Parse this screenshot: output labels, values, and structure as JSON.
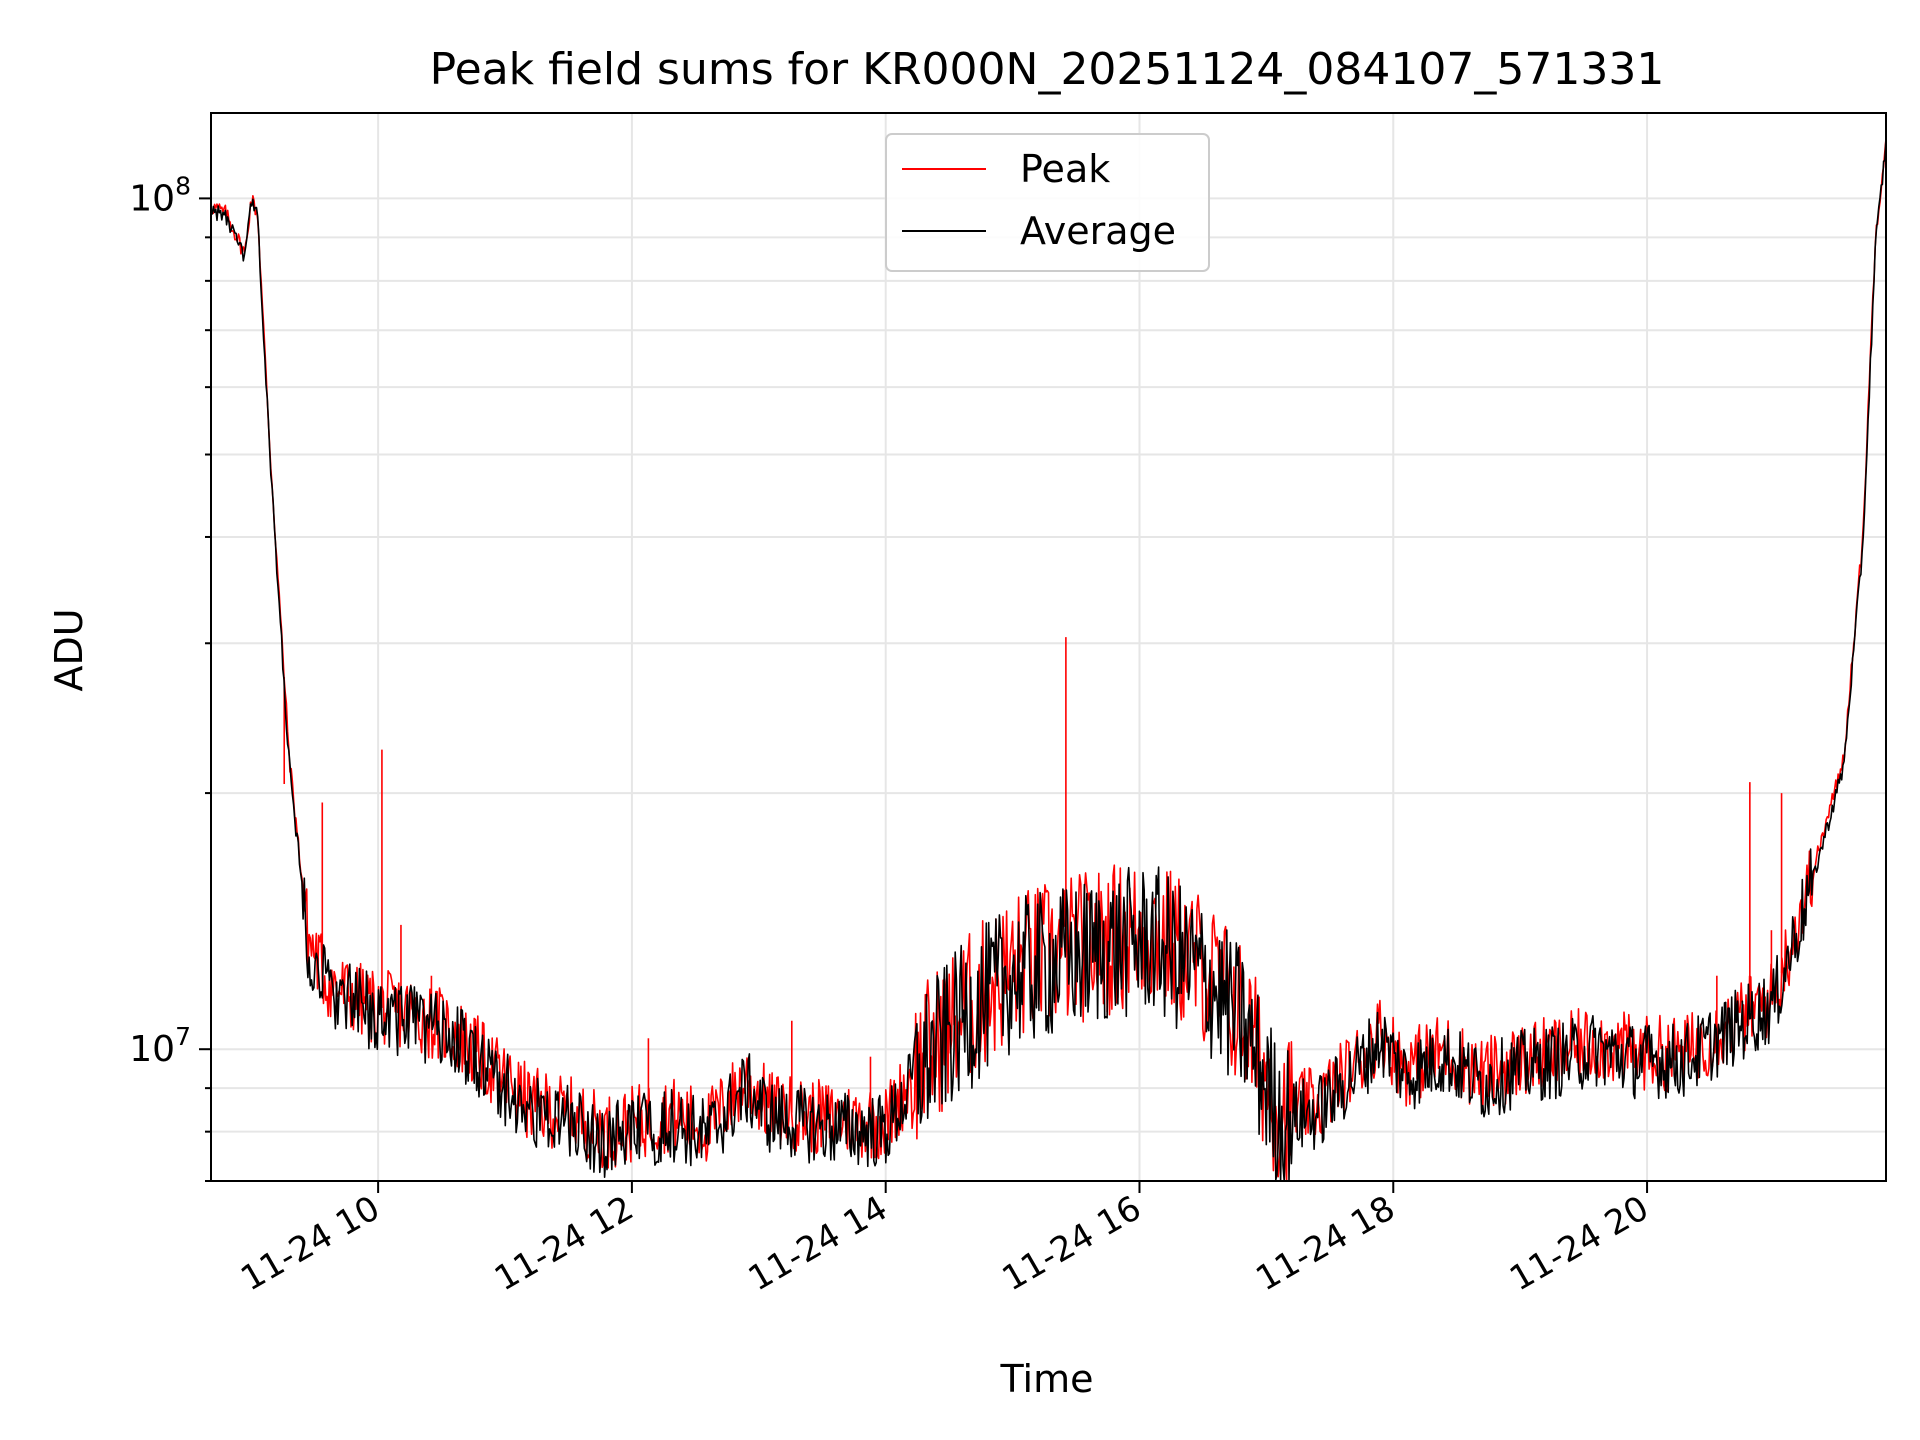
{
  "chart_data": {
    "type": "line",
    "title": "Peak field sums for KR000N_20251124_084107_571331",
    "xlabel": "Time",
    "ylabel": "ADU",
    "y_scale": "log",
    "ylim": [
      7000000,
      126000000
    ],
    "xlim_hours": [
      8.683,
      21.883
    ],
    "grid": true,
    "legend_position": "upper center",
    "x_ticks": [
      {
        "hour": 10,
        "label": "11-24 10"
      },
      {
        "hour": 12,
        "label": "11-24 12"
      },
      {
        "hour": 14,
        "label": "11-24 14"
      },
      {
        "hour": 16,
        "label": "11-24 16"
      },
      {
        "hour": 18,
        "label": "11-24 18"
      },
      {
        "hour": 20,
        "label": "11-24 20"
      }
    ],
    "y_ticks": [
      {
        "value": 10000000,
        "base": "10",
        "exp": "7"
      },
      {
        "value": 100000000,
        "base": "10",
        "exp": "8"
      }
    ],
    "series": [
      {
        "name": "Peak",
        "color": "#ff0000",
        "points": [
          [
            8.683,
            98000000
          ],
          [
            8.8,
            96000000
          ],
          [
            8.95,
            86000000
          ],
          [
            9.0,
            100000000
          ],
          [
            9.05,
            96000000
          ],
          [
            9.15,
            50000000
          ],
          [
            9.3,
            22000000
          ],
          [
            9.45,
            13500000
          ],
          [
            9.6,
            12000000
          ],
          [
            9.8,
            11500000
          ],
          [
            10.0,
            11200000
          ],
          [
            10.3,
            11000000
          ],
          [
            10.6,
            10500000
          ],
          [
            10.9,
            9500000
          ],
          [
            11.2,
            8600000
          ],
          [
            11.5,
            8400000
          ],
          [
            11.8,
            8000000
          ],
          [
            12.05,
            8200000
          ],
          [
            12.3,
            8400000
          ],
          [
            12.6,
            8100000
          ],
          [
            12.9,
            9200000
          ],
          [
            13.1,
            8500000
          ],
          [
            13.5,
            8300000
          ],
          [
            14.0,
            8200000
          ],
          [
            14.3,
            9800000
          ],
          [
            14.6,
            11000000
          ],
          [
            15.0,
            12500000
          ],
          [
            15.4,
            13000000
          ],
          [
            15.8,
            13500000
          ],
          [
            16.1,
            13800000
          ],
          [
            16.5,
            12500000
          ],
          [
            16.8,
            11000000
          ],
          [
            17.1,
            8500000
          ],
          [
            17.4,
            8600000
          ],
          [
            17.7,
            9600000
          ],
          [
            17.9,
            10500000
          ],
          [
            18.1,
            9500000
          ],
          [
            18.4,
            10000000
          ],
          [
            18.7,
            9300000
          ],
          [
            19.0,
            9700000
          ],
          [
            19.3,
            9900000
          ],
          [
            19.6,
            10200000
          ],
          [
            19.9,
            9900000
          ],
          [
            20.3,
            9900000
          ],
          [
            20.7,
            10800000
          ],
          [
            21.0,
            11500000
          ],
          [
            21.3,
            16000000
          ],
          [
            21.55,
            22000000
          ],
          [
            21.7,
            40000000
          ],
          [
            21.8,
            90000000
          ],
          [
            21.883,
            118000000
          ]
        ],
        "spikes": [
          [
            9.26,
            20500000
          ],
          [
            9.56,
            19500000
          ],
          [
            10.03,
            22500000
          ],
          [
            10.18,
            14000000
          ],
          [
            10.42,
            12200000
          ],
          [
            12.13,
            10300000
          ],
          [
            13.26,
            10800000
          ],
          [
            13.88,
            9800000
          ],
          [
            15.42,
            30500000
          ],
          [
            20.55,
            12200000
          ],
          [
            20.81,
            20600000
          ],
          [
            21.06,
            20000000
          ],
          [
            20.98,
            13800000
          ]
        ]
      },
      {
        "name": "Average",
        "color": "#000000",
        "points": [
          [
            8.683,
            97000000
          ],
          [
            8.8,
            95000000
          ],
          [
            8.95,
            85000000
          ],
          [
            9.0,
            99000000
          ],
          [
            9.05,
            95000000
          ],
          [
            9.15,
            49000000
          ],
          [
            9.3,
            21500000
          ],
          [
            9.45,
            13300000
          ],
          [
            9.6,
            11800000
          ],
          [
            9.8,
            11300000
          ],
          [
            10.0,
            11000000
          ],
          [
            10.3,
            10800000
          ],
          [
            10.6,
            10300000
          ],
          [
            10.9,
            9300000
          ],
          [
            11.2,
            8400000
          ],
          [
            11.5,
            8200000
          ],
          [
            11.8,
            7800000
          ],
          [
            12.05,
            8000000
          ],
          [
            12.3,
            8200000
          ],
          [
            12.6,
            7900000
          ],
          [
            12.9,
            9000000
          ],
          [
            13.1,
            8300000
          ],
          [
            13.5,
            8100000
          ],
          [
            14.0,
            8000000
          ],
          [
            14.3,
            9600000
          ],
          [
            14.6,
            10800000
          ],
          [
            15.0,
            12200000
          ],
          [
            15.4,
            12700000
          ],
          [
            15.8,
            13200000
          ],
          [
            16.1,
            13500000
          ],
          [
            16.5,
            12200000
          ],
          [
            16.8,
            10800000
          ],
          [
            17.1,
            8300000
          ],
          [
            17.4,
            8400000
          ],
          [
            17.7,
            9400000
          ],
          [
            17.9,
            10300000
          ],
          [
            18.1,
            9300000
          ],
          [
            18.4,
            9800000
          ],
          [
            18.7,
            9100000
          ],
          [
            19.0,
            9500000
          ],
          [
            19.3,
            9700000
          ],
          [
            19.6,
            10000000
          ],
          [
            19.9,
            9700000
          ],
          [
            20.3,
            9700000
          ],
          [
            20.7,
            10600000
          ],
          [
            21.0,
            11300000
          ],
          [
            21.3,
            15700000
          ],
          [
            21.55,
            21500000
          ],
          [
            21.7,
            39000000
          ],
          [
            21.8,
            88000000
          ],
          [
            21.883,
            116000000
          ]
        ]
      }
    ]
  }
}
